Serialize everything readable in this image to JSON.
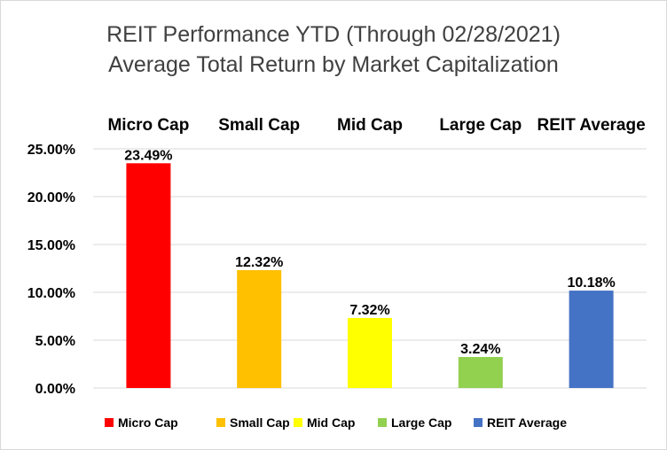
{
  "chart_data": {
    "type": "bar",
    "title": "REIT Performance YTD (Through 02/28/2021)",
    "subtitle": "Average Total Return by Market Capitalization",
    "categories": [
      "Micro Cap",
      "Small Cap",
      "Mid Cap",
      "Large Cap",
      "REIT Average"
    ],
    "values": [
      23.49,
      12.32,
      7.32,
      3.24,
      10.18
    ],
    "data_labels": [
      "23.49%",
      "12.32%",
      "7.32%",
      "3.24%",
      "10.18%"
    ],
    "colors": [
      "#ff0000",
      "#ffc000",
      "#ffff00",
      "#92d050",
      "#4472c4"
    ],
    "y_ticks": [
      "0.00%",
      "5.00%",
      "10.00%",
      "15.00%",
      "20.00%",
      "25.00%"
    ],
    "ylim": [
      0,
      25
    ],
    "xlabel": "",
    "ylabel": "",
    "grid": true,
    "legend_position": "bottom",
    "category_labels_position": "top"
  }
}
